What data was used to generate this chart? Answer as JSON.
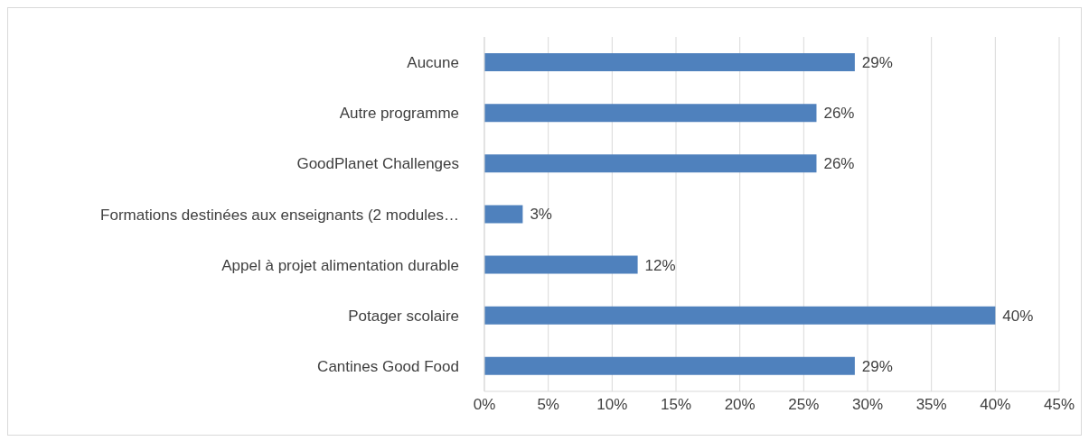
{
  "chart_data": {
    "type": "bar",
    "orientation": "horizontal",
    "categories": [
      "Aucune",
      "Autre programme",
      "GoodPlanet Challenges",
      "Formations destinées aux enseignants (2 modules…",
      "Appel à projet alimentation durable",
      "Potager scolaire",
      "Cantines Good Food"
    ],
    "values": [
      29,
      26,
      26,
      3,
      12,
      40,
      29
    ],
    "value_labels": [
      "29%",
      "26%",
      "26%",
      "3%",
      "12%",
      "40%",
      "29%"
    ],
    "color": "#4f81bd",
    "xlim": [
      0,
      45
    ],
    "xticks": [
      {
        "value": 0,
        "label": "0%"
      },
      {
        "value": 5,
        "label": "5%"
      },
      {
        "value": 10,
        "label": "10%"
      },
      {
        "value": 15,
        "label": "15%"
      },
      {
        "value": 20,
        "label": "20%"
      },
      {
        "value": 25,
        "label": "25%"
      },
      {
        "value": 30,
        "label": "30%"
      },
      {
        "value": 35,
        "label": "35%"
      },
      {
        "value": 40,
        "label": "40%"
      },
      {
        "value": 45,
        "label": "45%"
      }
    ],
    "grid": "x"
  }
}
